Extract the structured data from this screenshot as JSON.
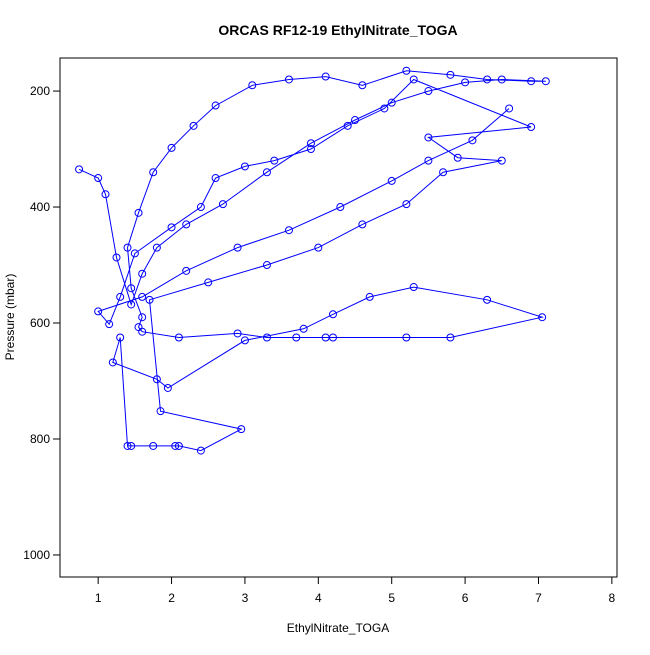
{
  "chart_data": {
    "type": "line",
    "title": "ORCAS RF12-19 EthylNitrate_TOGA",
    "x_label": "EthylNitrate_TOGA",
    "y_label": "Pressure (mbar)",
    "color": "#0000ff",
    "xlim": [
      0.48,
      8.07
    ],
    "xticks": [
      1,
      2,
      3,
      4,
      5,
      6,
      7,
      8
    ],
    "ylim": [
      1038,
      143
    ],
    "yticks": [
      200,
      400,
      600,
      800,
      1000
    ],
    "x": [
      0.74,
      1.0,
      1.1,
      1.25,
      1.45,
      1.6,
      1.8,
      2.2,
      2.7,
      3.3,
      3.9,
      4.5,
      5.0,
      5.5,
      6.0,
      6.5,
      7.1,
      6.9,
      6.3,
      5.8,
      5.2,
      4.6,
      4.1,
      3.6,
      3.1,
      2.6,
      2.3,
      2.0,
      1.75,
      1.55,
      1.4,
      1.45,
      1.6,
      1.55,
      1.6,
      2.1,
      2.9,
      3.3,
      3.7,
      4.1,
      4.2,
      5.2,
      5.8,
      7.05,
      6.3,
      5.3,
      4.7,
      4.2,
      3.8,
      3.0,
      1.95,
      1.8,
      1.2,
      1.3,
      1.4,
      1.45,
      1.75,
      2.05,
      2.1,
      2.4,
      2.95,
      1.85,
      1.7,
      2.5,
      3.3,
      4.0,
      4.6,
      5.2,
      5.7,
      6.5,
      5.9,
      5.5,
      6.9,
      5.3,
      4.9,
      4.4,
      3.9,
      3.4,
      3.0,
      2.6,
      2.4,
      2.0,
      1.5,
      1.3,
      1.15,
      1.0,
      1.6,
      2.2,
      2.9,
      3.6,
      4.3,
      5.0,
      5.5,
      6.1,
      6.6
    ],
    "values": [
      335,
      350,
      378,
      487,
      568,
      515,
      470,
      430,
      395,
      340,
      290,
      250,
      220,
      200,
      185,
      180,
      183,
      183,
      180,
      172,
      165,
      190,
      175,
      180,
      190,
      225,
      260,
      298,
      340,
      410,
      470,
      540,
      590,
      607,
      615,
      625,
      618,
      625,
      625,
      625,
      625,
      625,
      625,
      590,
      560,
      538,
      555,
      585,
      610,
      630,
      712,
      697,
      668,
      625,
      812,
      812,
      812,
      812,
      812,
      820,
      783,
      752,
      560,
      530,
      500,
      470,
      430,
      395,
      340,
      320,
      315,
      280,
      262,
      180,
      230,
      260,
      300,
      320,
      330,
      350,
      400,
      435,
      480,
      555,
      602,
      580,
      555,
      510,
      470,
      440,
      400,
      355,
      320,
      285,
      230
    ]
  }
}
